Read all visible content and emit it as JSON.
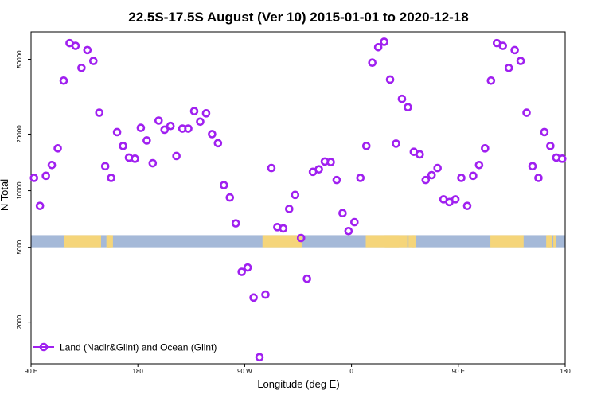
{
  "chart_data": {
    "type": "scatter",
    "title": "22.5S-17.5S August (Ver 10)   2015-01-01 to 2020-12-18",
    "xlabel": "Longitude (deg E)",
    "ylabel": "N Total",
    "x_scale": "linear",
    "y_scale": "log",
    "xlim": [
      90,
      540
    ],
    "ylim": [
      1200,
      70000
    ],
    "x_ticks": [
      {
        "value": 90,
        "label": "90 E"
      },
      {
        "value": 180,
        "label": "180"
      },
      {
        "value": 270,
        "label": "90 W"
      },
      {
        "value": 360,
        "label": "0"
      },
      {
        "value": 450,
        "label": "90 E"
      },
      {
        "value": 540,
        "label": "180"
      }
    ],
    "y_ticks": [
      {
        "value": 2000,
        "label": "2000"
      },
      {
        "value": 5000,
        "label": "5000"
      },
      {
        "value": 10000,
        "label": "10000"
      },
      {
        "value": 20000,
        "label": "20000"
      },
      {
        "value": 50000,
        "label": "50000"
      }
    ],
    "band": {
      "y_range": [
        5000,
        5800
      ],
      "ocean_color": "#a5b9d8",
      "land_color": "#f5d57a",
      "land_segments": [
        [
          118,
          149
        ],
        [
          157,
          159
        ],
        [
          156,
          158
        ],
        [
          155,
          157
        ],
        [
          154,
          156
        ],
        [
          154.5,
          156.5
        ],
        [
          153.5,
          155.5
        ],
        [
          285,
          318
        ],
        [
          372,
          407
        ],
        [
          411,
          413
        ],
        [
          408,
          414
        ],
        [
          388,
          400
        ],
        [
          477,
          505
        ],
        [
          527,
          529
        ],
        [
          530,
          532
        ],
        [
          524,
          526
        ],
        [
          525,
          527
        ],
        [
          526,
          528
        ]
      ]
    },
    "legend": {
      "position": "bottom-left",
      "label": "Land (Nadir&Glint) and Ocean (Glint)"
    },
    "series": [
      {
        "name": "Land (Nadir&Glint) and Ocean (Glint)",
        "color": "#a020f0",
        "marker": "open-circle",
        "x": [
          92.5,
          97.5,
          102.5,
          107.5,
          112.5,
          117.5,
          122.5,
          127.5,
          132.5,
          137.5,
          142.5,
          147.5,
          152.5,
          157.5,
          162.5,
          167.5,
          172.5,
          177.5,
          182.5,
          187.5,
          192.5,
          197.5,
          202.5,
          207.5,
          212.5,
          217.5,
          222.5,
          227.5,
          232.5,
          237.5,
          242.5,
          247.5,
          252.5,
          257.5,
          262.5,
          267.5,
          272.5,
          277.5,
          282.5,
          287.5,
          292.5,
          297.5,
          302.5,
          307.5,
          312.5,
          317.5,
          322.5,
          327.5,
          332.5,
          337.5,
          342.5,
          347.5,
          352.5,
          357.5,
          362.5,
          367.5,
          372.5,
          377.5,
          382.5,
          387.5,
          392.5,
          397.5,
          402.5,
          407.5,
          412.5,
          417.5,
          422.5,
          427.5,
          432.5,
          437.5,
          442.5,
          447.5,
          452.5,
          457.5,
          462.5,
          467.5,
          472.5,
          477.5,
          482.5,
          487.5,
          492.5,
          497.5,
          502.5,
          507.5,
          512.5,
          517.5,
          522.5,
          527.5,
          532.5,
          537.5
        ],
        "y": [
          11700,
          8300,
          12000,
          13700,
          16800,
          38500,
          61000,
          59000,
          45000,
          56000,
          49000,
          26000,
          13500,
          11700,
          20500,
          17300,
          15000,
          14800,
          21600,
          18500,
          14000,
          23600,
          21100,
          22100,
          15300,
          21400,
          21400,
          26500,
          23300,
          25800,
          20000,
          17900,
          10700,
          9200,
          6700,
          3700,
          3900,
          2700,
          1300,
          2800,
          13200,
          6400,
          6300,
          8000,
          9500,
          5600,
          3400,
          12600,
          13000,
          14300,
          14200,
          11400,
          7600,
          6100,
          6800,
          11700,
          17300,
          48000,
          58000,
          62000,
          39000,
          17800,
          30800,
          27800,
          16100,
          15600,
          11400,
          12100,
          13200,
          9000,
          8700,
          9000,
          11700,
          8300,
          12000,
          13700,
          16800,
          38500,
          61000,
          59000,
          45000,
          56000,
          49000,
          26000,
          13500,
          11700,
          20500,
          17300,
          15000,
          14800
        ]
      }
    ]
  }
}
